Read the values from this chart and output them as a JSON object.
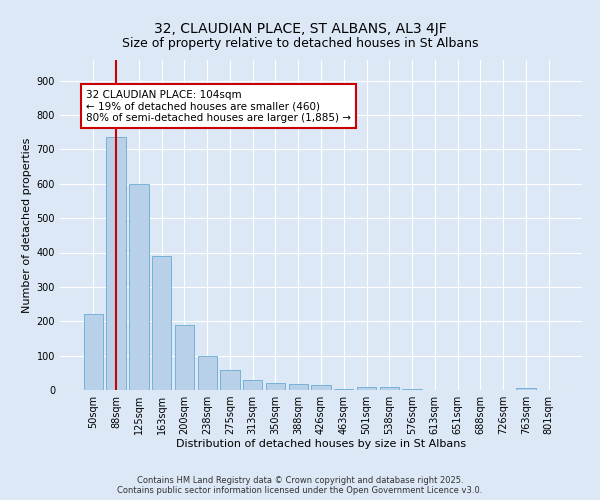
{
  "title": "32, CLAUDIAN PLACE, ST ALBANS, AL3 4JF",
  "subtitle": "Size of property relative to detached houses in St Albans",
  "xlabel": "Distribution of detached houses by size in St Albans",
  "ylabel": "Number of detached properties",
  "categories": [
    "50sqm",
    "88sqm",
    "125sqm",
    "163sqm",
    "200sqm",
    "238sqm",
    "275sqm",
    "313sqm",
    "350sqm",
    "388sqm",
    "426sqm",
    "463sqm",
    "501sqm",
    "538sqm",
    "576sqm",
    "613sqm",
    "651sqm",
    "688sqm",
    "726sqm",
    "763sqm",
    "801sqm"
  ],
  "values": [
    220,
    735,
    600,
    390,
    190,
    98,
    58,
    28,
    20,
    18,
    15,
    3,
    10,
    10,
    3,
    0,
    0,
    0,
    0,
    5,
    0
  ],
  "bar_color": "#b8d0e8",
  "bar_edgecolor": "#6aaad4",
  "vline_x": 1.0,
  "vline_color": "#cc0000",
  "annotation_text": "32 CLAUDIAN PLACE: 104sqm\n← 19% of detached houses are smaller (460)\n80% of semi-detached houses are larger (1,885) →",
  "annotation_box_color": "#ffffff",
  "annotation_box_edgecolor": "#cc0000",
  "ylim": [
    0,
    960
  ],
  "yticks": [
    0,
    100,
    200,
    300,
    400,
    500,
    600,
    700,
    800,
    900
  ],
  "background_color": "#dce8f5",
  "grid_color": "#ffffff",
  "footer": "Contains HM Land Registry data © Crown copyright and database right 2025.\nContains public sector information licensed under the Open Government Licence v3.0.",
  "title_fontsize": 10,
  "xlabel_fontsize": 8,
  "ylabel_fontsize": 8,
  "tick_fontsize": 7,
  "annotation_fontsize": 7.5,
  "footer_fontsize": 6
}
